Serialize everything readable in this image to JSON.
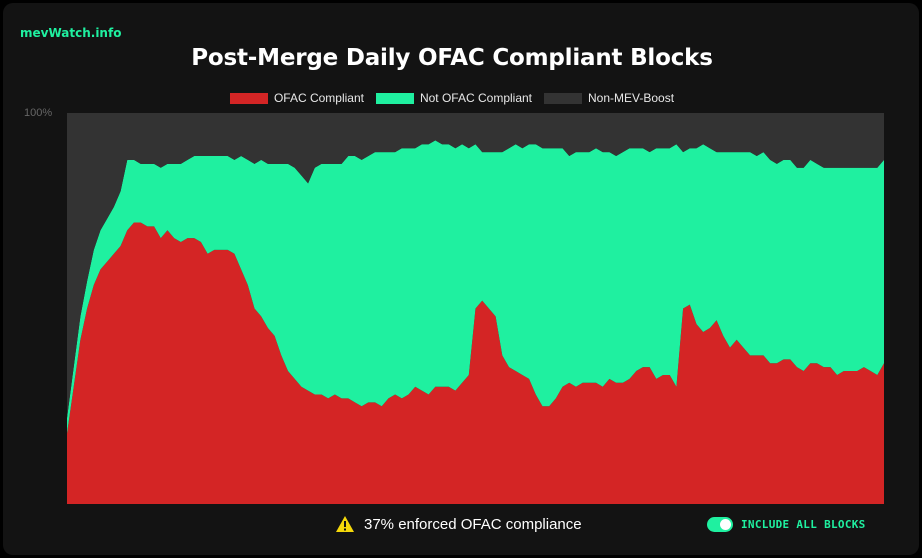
{
  "brand": "mevWatch.info",
  "footer": {
    "compliance_text": "37% enforced OFAC compliance",
    "toggle_label": "INCLUDE ALL BLOCKS",
    "toggle_on": true
  },
  "colors": {
    "panel_bg": "#131313",
    "ofac": "#d42525",
    "not_ofac": "#1ff0a0",
    "non_mev": "#333333",
    "accent": "#1ff0a0",
    "warning": "#f5d90a"
  },
  "icons": {
    "warning": "warning-triangle-icon"
  },
  "chart_data": {
    "type": "area",
    "stacked": true,
    "normalized_percent": true,
    "title": "Post-Merge Daily OFAC Compliant Blocks",
    "ylabel": "",
    "xlabel": "",
    "y_tick_labels": [
      "100%"
    ],
    "ylim": [
      0,
      100
    ],
    "legend": {
      "placement": "top-center"
    },
    "grid": false,
    "series": [
      {
        "name": "OFAC Compliant",
        "color": "#d42525",
        "values": [
          18,
          30,
          42,
          50,
          56,
          60,
          62,
          64,
          66,
          70,
          72,
          72,
          71,
          71,
          68,
          70,
          68,
          67,
          68,
          68,
          67,
          64,
          65,
          65,
          65,
          64,
          60,
          56,
          50,
          48,
          45,
          43,
          38,
          34,
          32,
          30,
          29,
          28,
          28,
          27,
          28,
          27,
          27,
          26,
          25,
          26,
          26,
          25,
          27,
          28,
          27,
          28,
          30,
          29,
          28,
          30,
          30,
          30,
          29,
          31,
          33,
          50,
          52,
          50,
          48,
          38,
          35,
          34,
          33,
          32,
          28,
          25,
          25,
          27,
          30,
          31,
          30,
          31,
          31,
          31,
          30,
          32,
          31,
          31,
          32,
          34,
          35,
          35,
          32,
          33,
          33,
          30,
          50,
          51,
          46,
          44,
          45,
          47,
          43,
          40,
          42,
          40,
          38,
          38,
          38,
          36,
          36,
          37,
          37,
          35,
          34,
          36,
          36,
          35,
          35,
          33,
          34,
          34,
          34,
          35,
          34,
          33,
          36
        ]
      },
      {
        "name": "Not OFAC Compliant",
        "color": "#1ff0a0",
        "values": [
          4,
          5,
          6,
          7,
          9,
          10,
          11,
          12,
          14,
          18,
          16,
          15,
          16,
          16,
          18,
          17,
          19,
          20,
          20,
          21,
          22,
          25,
          24,
          24,
          24,
          24,
          29,
          32,
          37,
          40,
          42,
          44,
          49,
          53,
          54,
          54,
          53,
          58,
          59,
          60,
          59,
          60,
          62,
          63,
          63,
          63,
          64,
          65,
          63,
          62,
          64,
          63,
          61,
          63,
          64,
          63,
          62,
          62,
          62,
          61,
          58,
          42,
          38,
          40,
          42,
          52,
          56,
          58,
          58,
          60,
          64,
          66,
          66,
          64,
          61,
          58,
          60,
          59,
          59,
          60,
          60,
          58,
          58,
          59,
          59,
          57,
          56,
          55,
          59,
          58,
          58,
          62,
          40,
          40,
          45,
          48,
          46,
          43,
          47,
          50,
          48,
          50,
          52,
          51,
          52,
          52,
          51,
          51,
          51,
          51,
          52,
          52,
          51,
          51,
          51,
          53,
          52,
          52,
          52,
          51,
          52,
          53,
          52
        ]
      },
      {
        "name": "Non-MEV-Boost",
        "color": "#333333",
        "values": [
          78,
          65,
          52,
          43,
          35,
          30,
          27,
          24,
          20,
          12,
          12,
          13,
          13,
          13,
          14,
          13,
          13,
          13,
          12,
          11,
          11,
          11,
          11,
          11,
          11,
          12,
          11,
          12,
          13,
          12,
          13,
          13,
          13,
          13,
          14,
          16,
          18,
          14,
          13,
          13,
          13,
          13,
          11,
          11,
          12,
          11,
          10,
          10,
          10,
          10,
          9,
          9,
          9,
          8,
          8,
          7,
          8,
          8,
          9,
          8,
          9,
          8,
          10,
          10,
          10,
          10,
          9,
          8,
          9,
          8,
          8,
          9,
          9,
          9,
          9,
          11,
          10,
          10,
          10,
          9,
          10,
          10,
          11,
          10,
          9,
          9,
          9,
          10,
          9,
          9,
          9,
          8,
          10,
          9,
          9,
          8,
          9,
          10,
          10,
          10,
          10,
          10,
          10,
          11,
          10,
          12,
          13,
          12,
          12,
          14,
          14,
          12,
          13,
          14,
          14,
          14,
          14,
          14,
          14,
          14,
          14,
          14,
          12
        ]
      }
    ]
  }
}
